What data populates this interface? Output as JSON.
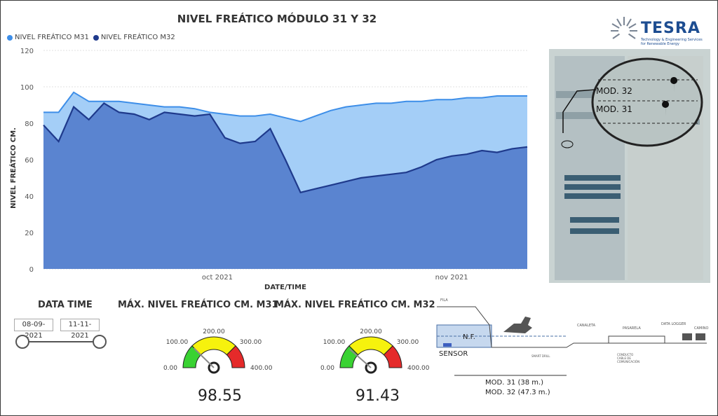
{
  "title": "NIVEL FREÁTICO MÓDULO 31 Y 32",
  "legend": {
    "m31": "NIVEL FREÁTICO M31",
    "m32": "NIVEL FREÁTICO M32"
  },
  "colors": {
    "m31_line": "#3d8ee8",
    "m31_fill": "#a4cef7",
    "m32_line": "#1f3a8c",
    "m32_fill": "#5a84d0",
    "gauge_red": "#e52a2a",
    "gauge_yellow": "#f6f20d",
    "gauge_green": "#39d232"
  },
  "chart_data": {
    "type": "area",
    "title": "NIVEL FREÁTICO MÓDULO 31 Y 32",
    "xlabel": "DATE/TIME",
    "ylabel": "NIVEL FREÁTICO CM.",
    "ylim": [
      0,
      120
    ],
    "yticks": [
      "0",
      "20",
      "40",
      "60",
      "80",
      "100",
      "120"
    ],
    "xtick_labels": [
      "oct 2021",
      "nov 2021"
    ],
    "x_start": "08-09-2021",
    "x_end": "11-11-2021",
    "legend_position": "top-left",
    "grid": true,
    "series": [
      {
        "name": "NIVEL FREÁTICO M31",
        "x": [
          "2021-09-08",
          "2021-09-10",
          "2021-09-12",
          "2021-09-14",
          "2021-09-16",
          "2021-09-18",
          "2021-09-20",
          "2021-09-22",
          "2021-09-24",
          "2021-09-26",
          "2021-09-28",
          "2021-09-30",
          "2021-10-02",
          "2021-10-04",
          "2021-10-06",
          "2021-10-08",
          "2021-10-10",
          "2021-10-12",
          "2021-10-14",
          "2021-10-16",
          "2021-10-18",
          "2021-10-20",
          "2021-10-22",
          "2021-10-24",
          "2021-10-26",
          "2021-10-28",
          "2021-10-30",
          "2021-11-01",
          "2021-11-03",
          "2021-11-05",
          "2021-11-07",
          "2021-11-09",
          "2021-11-11"
        ],
        "values": [
          86,
          86,
          97,
          92,
          92,
          92,
          91,
          90,
          89,
          89,
          88,
          86,
          85,
          84,
          84,
          85,
          83,
          81,
          84,
          87,
          89,
          90,
          91,
          91,
          92,
          92,
          93,
          93,
          94,
          94,
          95,
          95,
          95
        ]
      },
      {
        "name": "NIVEL FREÁTICO M32",
        "x": [
          "2021-09-08",
          "2021-09-10",
          "2021-09-12",
          "2021-09-14",
          "2021-09-16",
          "2021-09-18",
          "2021-09-20",
          "2021-09-22",
          "2021-09-24",
          "2021-09-26",
          "2021-09-28",
          "2021-09-30",
          "2021-10-02",
          "2021-10-04",
          "2021-10-06",
          "2021-10-08",
          "2021-10-10",
          "2021-10-12",
          "2021-10-14",
          "2021-10-16",
          "2021-10-18",
          "2021-10-20",
          "2021-10-22",
          "2021-10-24",
          "2021-10-26",
          "2021-10-28",
          "2021-10-30",
          "2021-11-01",
          "2021-11-03",
          "2021-11-05",
          "2021-11-07",
          "2021-11-09",
          "2021-11-11"
        ],
        "values": [
          79,
          70,
          89,
          82,
          91,
          86,
          85,
          82,
          86,
          85,
          84,
          85,
          72,
          69,
          70,
          77,
          60,
          42,
          44,
          46,
          48,
          50,
          51,
          52,
          53,
          56,
          60,
          62,
          63,
          65,
          64,
          66,
          67
        ]
      }
    ]
  },
  "filter": {
    "label": "DATA TIME",
    "start": "08-09-2021",
    "end": "11-11-2021"
  },
  "gauge_m31": {
    "title": "MÁX. NIVEL FREÁTICO CM. M31",
    "value": "98.55",
    "value_num": 98.55,
    "min": "0.00",
    "t1": "100.00",
    "t2": "200.00",
    "t3": "300.00",
    "max": "400.00"
  },
  "gauge_m32": {
    "title": "MÁX. NIVEL FREÁTICO CM. M32",
    "value": "91.43",
    "value_num": 91.43,
    "min": "0.00",
    "t1": "100.00",
    "t2": "200.00",
    "t3": "300.00",
    "max": "400.00"
  },
  "logo": {
    "brand": "TESRA",
    "tagline": "Technology & Engineering Services for Renewable Energy"
  },
  "map": {
    "mod32": "MOD. 32",
    "mod31": "MOD. 31"
  },
  "section": {
    "nf": "N.F.",
    "sensor": "SENSOR",
    "mod31_dist": "MOD. 31 (38 m.)",
    "mod32_dist": "MOD. 32 (47.3 m.)"
  }
}
